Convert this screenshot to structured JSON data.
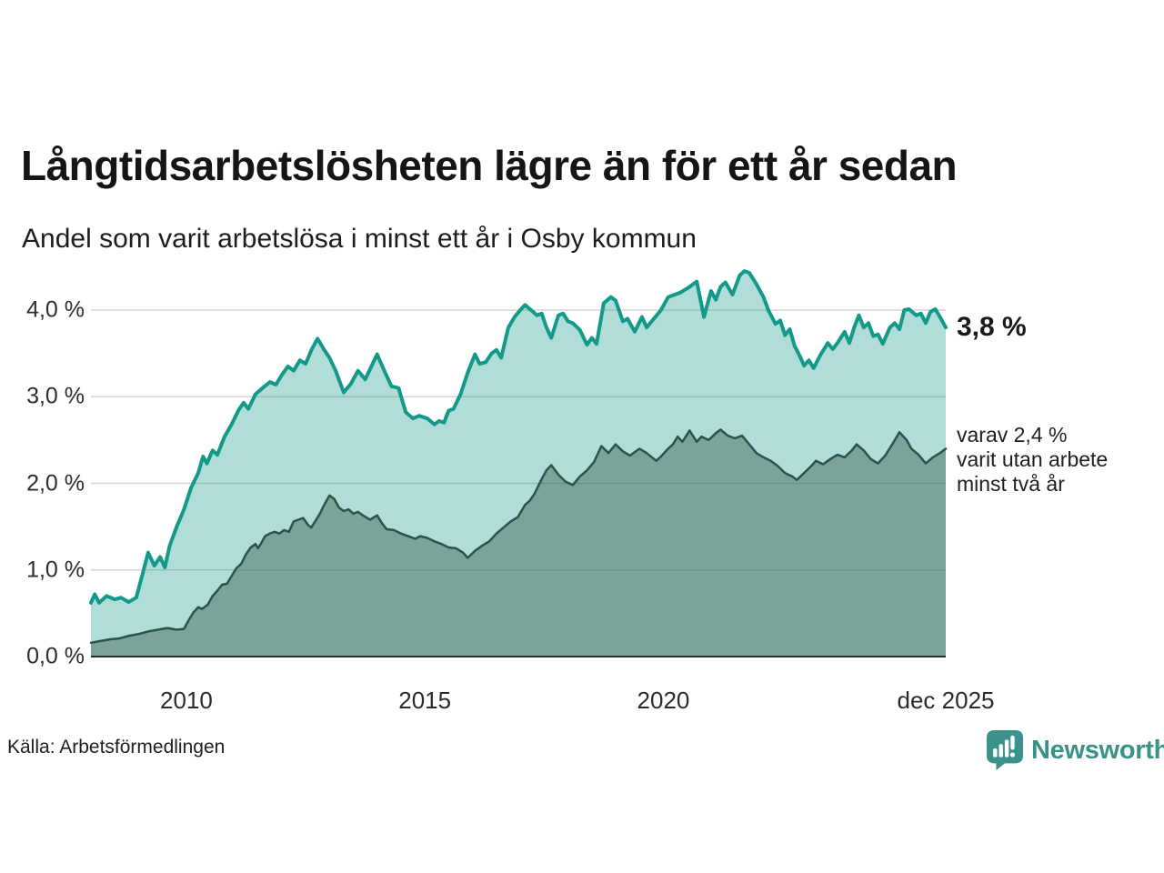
{
  "chart_data": {
    "type": "area",
    "title": "Långtidsarbetslösheten lägre än för ett år sedan",
    "subtitle": "Andel som varit arbetslösa i minst ett år i Osby kommun",
    "source": "Källa: Arbetsförmedlingen",
    "unit": "%",
    "xlim": [
      2008.0,
      2025.92
    ],
    "ylim": [
      0,
      4.65
    ],
    "grid": true,
    "legend": "end-of-line annotations",
    "yticks": [
      {
        "v": 0,
        "label": "0,0 %"
      },
      {
        "v": 1,
        "label": "1,0 %"
      },
      {
        "v": 2,
        "label": "2,0 %"
      },
      {
        "v": 3,
        "label": "3,0 %"
      },
      {
        "v": 4,
        "label": "4,0 %"
      }
    ],
    "xticks": [
      {
        "v": 2010,
        "label": "2010"
      },
      {
        "v": 2015,
        "label": "2015"
      },
      {
        "v": 2020,
        "label": "2020"
      },
      {
        "v": 2025.92,
        "label": "dec 2025"
      }
    ],
    "series": [
      {
        "name": "arbetslösa minst ett år",
        "end_value": "3,8 %",
        "line_color": "#12998a",
        "fill_color": "#12998a",
        "fill_opacity": 0.33,
        "line_width": 4,
        "points": [
          [
            2008.0,
            0.62
          ],
          [
            2008.08,
            0.72
          ],
          [
            2008.17,
            0.62
          ],
          [
            2008.33,
            0.7
          ],
          [
            2008.5,
            0.66
          ],
          [
            2008.63,
            0.68
          ],
          [
            2008.79,
            0.63
          ],
          [
            2008.95,
            0.68
          ],
          [
            2009.08,
            0.95
          ],
          [
            2009.2,
            1.2
          ],
          [
            2009.33,
            1.05
          ],
          [
            2009.45,
            1.15
          ],
          [
            2009.55,
            1.03
          ],
          [
            2009.65,
            1.28
          ],
          [
            2009.8,
            1.5
          ],
          [
            2009.95,
            1.7
          ],
          [
            2010.1,
            1.95
          ],
          [
            2010.25,
            2.12
          ],
          [
            2010.35,
            2.31
          ],
          [
            2010.43,
            2.23
          ],
          [
            2010.55,
            2.38
          ],
          [
            2010.65,
            2.33
          ],
          [
            2010.8,
            2.54
          ],
          [
            2010.95,
            2.68
          ],
          [
            2011.1,
            2.85
          ],
          [
            2011.2,
            2.93
          ],
          [
            2011.3,
            2.86
          ],
          [
            2011.45,
            3.03
          ],
          [
            2011.6,
            3.1
          ],
          [
            2011.75,
            3.17
          ],
          [
            2011.88,
            3.14
          ],
          [
            2012.0,
            3.25
          ],
          [
            2012.13,
            3.35
          ],
          [
            2012.25,
            3.3
          ],
          [
            2012.38,
            3.42
          ],
          [
            2012.5,
            3.38
          ],
          [
            2012.63,
            3.55
          ],
          [
            2012.75,
            3.67
          ],
          [
            2012.88,
            3.55
          ],
          [
            2013.0,
            3.45
          ],
          [
            2013.13,
            3.3
          ],
          [
            2013.3,
            3.05
          ],
          [
            2013.45,
            3.15
          ],
          [
            2013.6,
            3.3
          ],
          [
            2013.75,
            3.2
          ],
          [
            2013.88,
            3.35
          ],
          [
            2014.0,
            3.49
          ],
          [
            2014.15,
            3.3
          ],
          [
            2014.3,
            3.12
          ],
          [
            2014.45,
            3.1
          ],
          [
            2014.6,
            2.82
          ],
          [
            2014.75,
            2.75
          ],
          [
            2014.88,
            2.78
          ],
          [
            2015.05,
            2.75
          ],
          [
            2015.2,
            2.68
          ],
          [
            2015.3,
            2.72
          ],
          [
            2015.4,
            2.7
          ],
          [
            2015.5,
            2.84
          ],
          [
            2015.6,
            2.86
          ],
          [
            2015.75,
            3.03
          ],
          [
            2015.9,
            3.28
          ],
          [
            2016.05,
            3.49
          ],
          [
            2016.15,
            3.38
          ],
          [
            2016.28,
            3.4
          ],
          [
            2016.4,
            3.5
          ],
          [
            2016.5,
            3.54
          ],
          [
            2016.6,
            3.45
          ],
          [
            2016.75,
            3.8
          ],
          [
            2016.88,
            3.92
          ],
          [
            2017.0,
            4.0
          ],
          [
            2017.1,
            4.06
          ],
          [
            2017.25,
            3.99
          ],
          [
            2017.35,
            3.94
          ],
          [
            2017.45,
            3.96
          ],
          [
            2017.55,
            3.8
          ],
          [
            2017.65,
            3.68
          ],
          [
            2017.8,
            3.94
          ],
          [
            2017.9,
            3.96
          ],
          [
            2018.0,
            3.87
          ],
          [
            2018.1,
            3.85
          ],
          [
            2018.25,
            3.77
          ],
          [
            2018.4,
            3.6
          ],
          [
            2018.5,
            3.68
          ],
          [
            2018.6,
            3.61
          ],
          [
            2018.75,
            4.08
          ],
          [
            2018.9,
            4.15
          ],
          [
            2019.0,
            4.11
          ],
          [
            2019.15,
            3.87
          ],
          [
            2019.25,
            3.9
          ],
          [
            2019.4,
            3.75
          ],
          [
            2019.55,
            3.92
          ],
          [
            2019.65,
            3.8
          ],
          [
            2019.8,
            3.9
          ],
          [
            2019.95,
            4.0
          ],
          [
            2020.1,
            4.15
          ],
          [
            2020.2,
            4.17
          ],
          [
            2020.35,
            4.2
          ],
          [
            2020.5,
            4.25
          ],
          [
            2020.7,
            4.33
          ],
          [
            2020.85,
            3.92
          ],
          [
            2021.0,
            4.22
          ],
          [
            2021.1,
            4.12
          ],
          [
            2021.2,
            4.27
          ],
          [
            2021.3,
            4.32
          ],
          [
            2021.45,
            4.18
          ],
          [
            2021.6,
            4.4
          ],
          [
            2021.7,
            4.45
          ],
          [
            2021.8,
            4.43
          ],
          [
            2021.95,
            4.3
          ],
          [
            2022.1,
            4.15
          ],
          [
            2022.2,
            4.0
          ],
          [
            2022.35,
            3.84
          ],
          [
            2022.45,
            3.88
          ],
          [
            2022.55,
            3.71
          ],
          [
            2022.65,
            3.78
          ],
          [
            2022.75,
            3.59
          ],
          [
            2022.85,
            3.48
          ],
          [
            2022.95,
            3.36
          ],
          [
            2023.05,
            3.42
          ],
          [
            2023.15,
            3.33
          ],
          [
            2023.3,
            3.49
          ],
          [
            2023.45,
            3.62
          ],
          [
            2023.55,
            3.55
          ],
          [
            2023.65,
            3.62
          ],
          [
            2023.8,
            3.75
          ],
          [
            2023.9,
            3.62
          ],
          [
            2024.0,
            3.8
          ],
          [
            2024.1,
            3.94
          ],
          [
            2024.2,
            3.8
          ],
          [
            2024.3,
            3.85
          ],
          [
            2024.4,
            3.7
          ],
          [
            2024.5,
            3.72
          ],
          [
            2024.6,
            3.61
          ],
          [
            2024.75,
            3.8
          ],
          [
            2024.85,
            3.85
          ],
          [
            2024.95,
            3.78
          ],
          [
            2025.05,
            4.0
          ],
          [
            2025.15,
            4.01
          ],
          [
            2025.3,
            3.94
          ],
          [
            2025.4,
            3.96
          ],
          [
            2025.5,
            3.85
          ],
          [
            2025.6,
            3.98
          ],
          [
            2025.7,
            4.01
          ],
          [
            2025.8,
            3.92
          ],
          [
            2025.92,
            3.8
          ]
        ]
      },
      {
        "name": "varav utan arbete minst två år",
        "end_value": "2,4 %",
        "annotation_lines": [
          "varav 2,4 %",
          "varit utan arbete",
          "minst två år"
        ],
        "line_color": "#2d5347",
        "fill_color": "#2d5347",
        "fill_opacity": 0.42,
        "line_width": 2.5,
        "points": [
          [
            2008.0,
            0.16
          ],
          [
            2008.2,
            0.18
          ],
          [
            2008.4,
            0.2
          ],
          [
            2008.6,
            0.21
          ],
          [
            2008.8,
            0.24
          ],
          [
            2009.0,
            0.26
          ],
          [
            2009.2,
            0.29
          ],
          [
            2009.4,
            0.31
          ],
          [
            2009.6,
            0.33
          ],
          [
            2009.8,
            0.31
          ],
          [
            2009.95,
            0.32
          ],
          [
            2010.05,
            0.42
          ],
          [
            2010.15,
            0.51
          ],
          [
            2010.25,
            0.57
          ],
          [
            2010.33,
            0.55
          ],
          [
            2010.45,
            0.6
          ],
          [
            2010.55,
            0.7
          ],
          [
            2010.65,
            0.76
          ],
          [
            2010.75,
            0.83
          ],
          [
            2010.85,
            0.84
          ],
          [
            2010.95,
            0.93
          ],
          [
            2011.05,
            1.02
          ],
          [
            2011.15,
            1.07
          ],
          [
            2011.25,
            1.18
          ],
          [
            2011.35,
            1.26
          ],
          [
            2011.45,
            1.3
          ],
          [
            2011.5,
            1.25
          ],
          [
            2011.57,
            1.31
          ],
          [
            2011.65,
            1.39
          ],
          [
            2011.75,
            1.42
          ],
          [
            2011.85,
            1.44
          ],
          [
            2011.95,
            1.42
          ],
          [
            2012.05,
            1.46
          ],
          [
            2012.15,
            1.44
          ],
          [
            2012.25,
            1.56
          ],
          [
            2012.35,
            1.58
          ],
          [
            2012.45,
            1.6
          ],
          [
            2012.55,
            1.52
          ],
          [
            2012.62,
            1.49
          ],
          [
            2012.7,
            1.56
          ],
          [
            2012.8,
            1.65
          ],
          [
            2012.87,
            1.73
          ],
          [
            2012.93,
            1.79
          ],
          [
            2013.0,
            1.86
          ],
          [
            2013.1,
            1.82
          ],
          [
            2013.2,
            1.72
          ],
          [
            2013.3,
            1.68
          ],
          [
            2013.4,
            1.7
          ],
          [
            2013.5,
            1.65
          ],
          [
            2013.6,
            1.67
          ],
          [
            2013.7,
            1.63
          ],
          [
            2013.85,
            1.58
          ],
          [
            2014.0,
            1.63
          ],
          [
            2014.1,
            1.54
          ],
          [
            2014.2,
            1.47
          ],
          [
            2014.35,
            1.46
          ],
          [
            2014.5,
            1.42
          ],
          [
            2014.65,
            1.39
          ],
          [
            2014.8,
            1.36
          ],
          [
            2014.9,
            1.39
          ],
          [
            2015.05,
            1.37
          ],
          [
            2015.2,
            1.33
          ],
          [
            2015.35,
            1.3
          ],
          [
            2015.5,
            1.26
          ],
          [
            2015.65,
            1.25
          ],
          [
            2015.8,
            1.2
          ],
          [
            2015.9,
            1.14
          ],
          [
            2016.05,
            1.22
          ],
          [
            2016.2,
            1.28
          ],
          [
            2016.35,
            1.33
          ],
          [
            2016.5,
            1.42
          ],
          [
            2016.65,
            1.49
          ],
          [
            2016.8,
            1.56
          ],
          [
            2016.95,
            1.61
          ],
          [
            2017.1,
            1.75
          ],
          [
            2017.2,
            1.8
          ],
          [
            2017.3,
            1.88
          ],
          [
            2017.45,
            2.05
          ],
          [
            2017.55,
            2.15
          ],
          [
            2017.65,
            2.21
          ],
          [
            2017.8,
            2.1
          ],
          [
            2017.95,
            2.02
          ],
          [
            2018.1,
            1.98
          ],
          [
            2018.25,
            2.08
          ],
          [
            2018.4,
            2.15
          ],
          [
            2018.55,
            2.25
          ],
          [
            2018.7,
            2.43
          ],
          [
            2018.85,
            2.35
          ],
          [
            2019.0,
            2.45
          ],
          [
            2019.15,
            2.37
          ],
          [
            2019.3,
            2.32
          ],
          [
            2019.5,
            2.4
          ],
          [
            2019.65,
            2.35
          ],
          [
            2019.85,
            2.26
          ],
          [
            2019.95,
            2.31
          ],
          [
            2020.1,
            2.4
          ],
          [
            2020.2,
            2.45
          ],
          [
            2020.3,
            2.54
          ],
          [
            2020.4,
            2.48
          ],
          [
            2020.55,
            2.61
          ],
          [
            2020.7,
            2.48
          ],
          [
            2020.8,
            2.54
          ],
          [
            2020.95,
            2.5
          ],
          [
            2021.1,
            2.58
          ],
          [
            2021.2,
            2.62
          ],
          [
            2021.35,
            2.55
          ],
          [
            2021.5,
            2.52
          ],
          [
            2021.65,
            2.55
          ],
          [
            2021.8,
            2.45
          ],
          [
            2021.95,
            2.35
          ],
          [
            2022.1,
            2.3
          ],
          [
            2022.25,
            2.26
          ],
          [
            2022.4,
            2.2
          ],
          [
            2022.55,
            2.12
          ],
          [
            2022.7,
            2.08
          ],
          [
            2022.8,
            2.04
          ],
          [
            2022.95,
            2.12
          ],
          [
            2023.1,
            2.2
          ],
          [
            2023.2,
            2.26
          ],
          [
            2023.35,
            2.22
          ],
          [
            2023.5,
            2.28
          ],
          [
            2023.65,
            2.33
          ],
          [
            2023.8,
            2.3
          ],
          [
            2023.95,
            2.38
          ],
          [
            2024.05,
            2.45
          ],
          [
            2024.2,
            2.38
          ],
          [
            2024.35,
            2.28
          ],
          [
            2024.5,
            2.23
          ],
          [
            2024.65,
            2.32
          ],
          [
            2024.8,
            2.45
          ],
          [
            2024.95,
            2.59
          ],
          [
            2025.1,
            2.5
          ],
          [
            2025.2,
            2.4
          ],
          [
            2025.35,
            2.33
          ],
          [
            2025.5,
            2.23
          ],
          [
            2025.65,
            2.3
          ],
          [
            2025.8,
            2.35
          ],
          [
            2025.92,
            2.4
          ]
        ]
      }
    ]
  },
  "branding": {
    "wordmark": "Newsworthy"
  }
}
